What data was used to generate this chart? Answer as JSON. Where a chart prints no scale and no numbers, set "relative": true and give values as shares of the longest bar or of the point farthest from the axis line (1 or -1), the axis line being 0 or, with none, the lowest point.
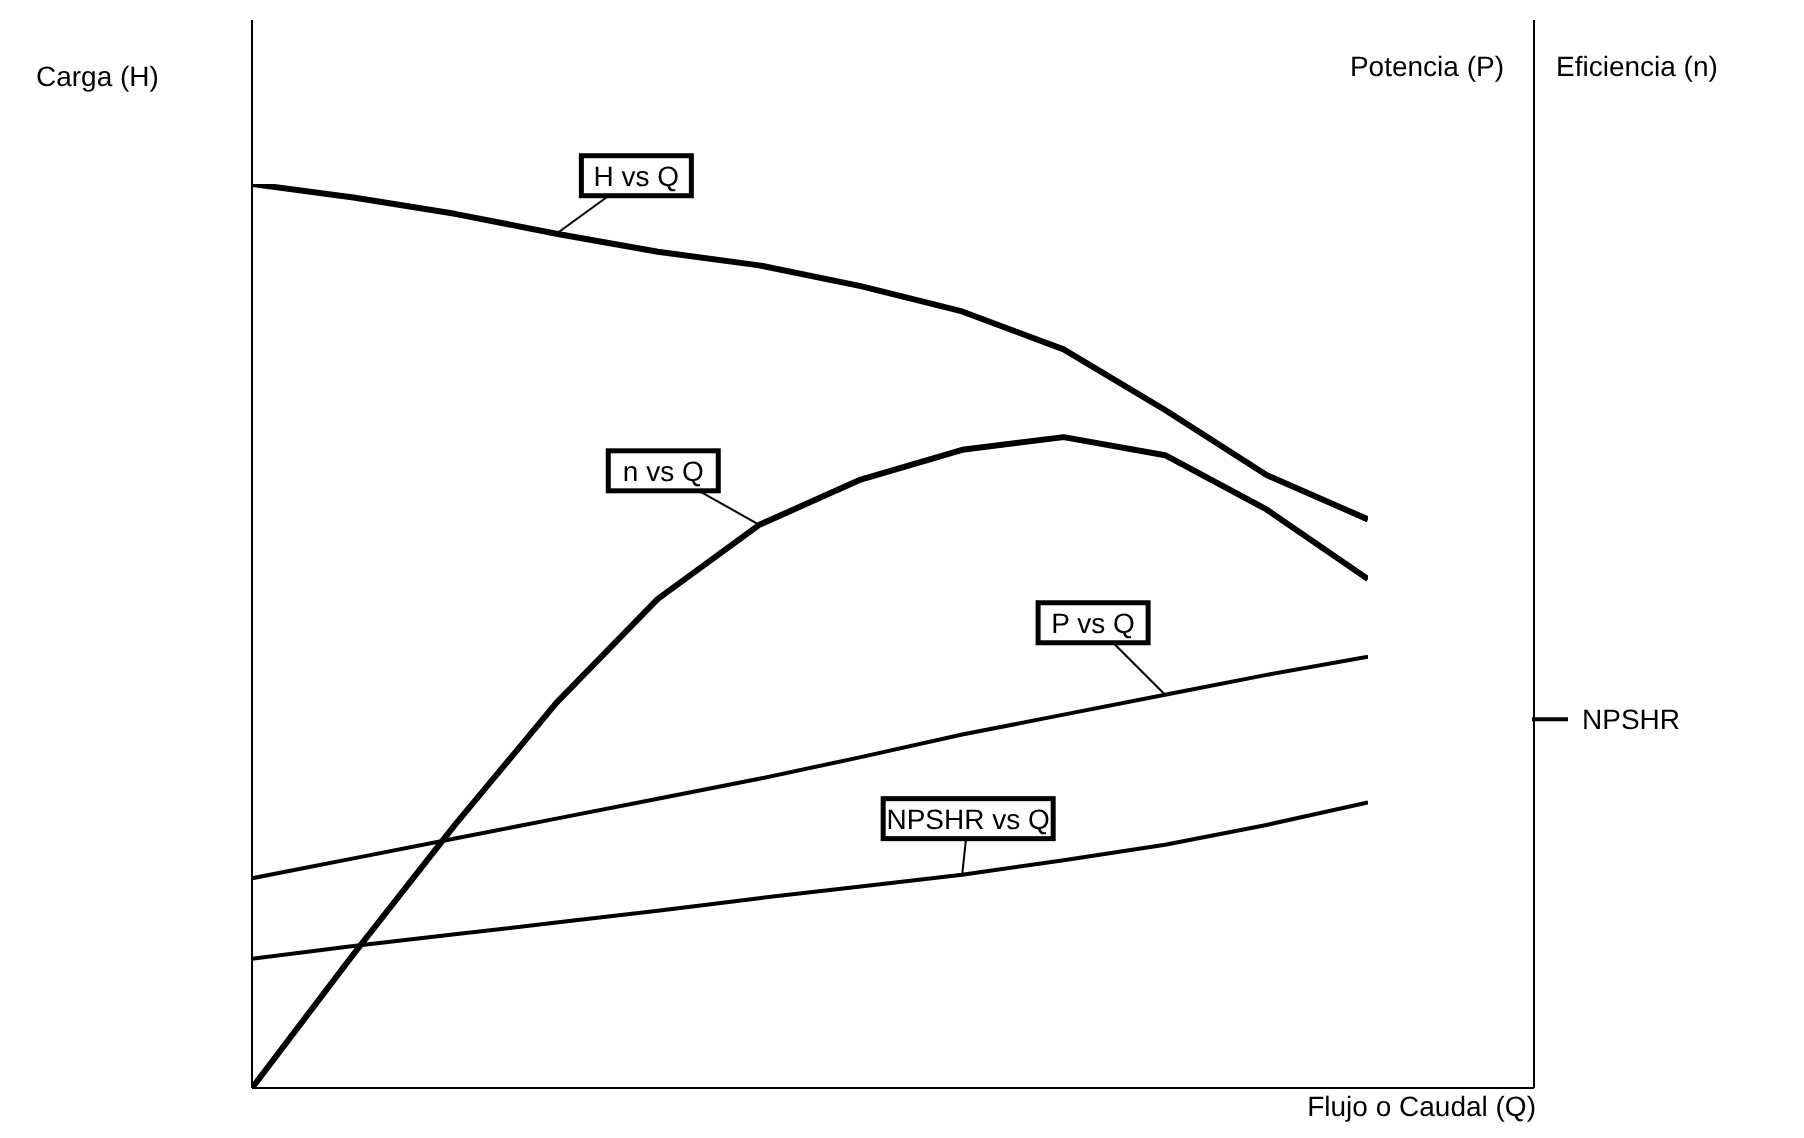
{
  "chart_data": {
    "type": "line",
    "relative": true,
    "ylabel": "Carga (H)",
    "y2label": "Potencia (P)",
    "y3label": "Eficiencia (n)",
    "xlabel": "Flujo o Caudal (Q)",
    "categories": [
      null,
      null,
      null,
      null,
      null,
      null,
      null,
      null,
      null,
      null,
      null,
      null
    ],
    "series": [
      {
        "name": "H vs Q",
        "color": "#000000",
        "values": [
          1.0,
          0.985,
          0.967,
          0.945,
          0.925,
          0.91,
          0.887,
          0.859,
          0.817,
          0.75,
          0.678,
          0.629
        ]
      },
      {
        "name": "n vs Q",
        "color": "#000000",
        "values": [
          0,
          0.148,
          0.291,
          0.426,
          0.541,
          0.623,
          0.673,
          0.706,
          0.72,
          0.7,
          0.64,
          0.563
        ]
      },
      {
        "name": "P vs Q",
        "color": "#000000",
        "values": [
          0.232,
          0.254,
          0.276,
          0.298,
          0.32,
          0.342,
          0.366,
          0.391,
          0.413,
          0.435,
          0.457,
          0.477
        ]
      },
      {
        "name": "NPSHR vs Q",
        "color": "#000000",
        "values": [
          0.143,
          0.157,
          0.17,
          0.183,
          0.196,
          0.21,
          0.223,
          0.236,
          0.252,
          0.269,
          0.291,
          0.316
        ]
      }
    ],
    "ref_lines": [
      {
        "axis": "y",
        "value": 0.408,
        "label": "NPSHR"
      }
    ],
    "marker": "none",
    "line_style": "solid"
  }
}
